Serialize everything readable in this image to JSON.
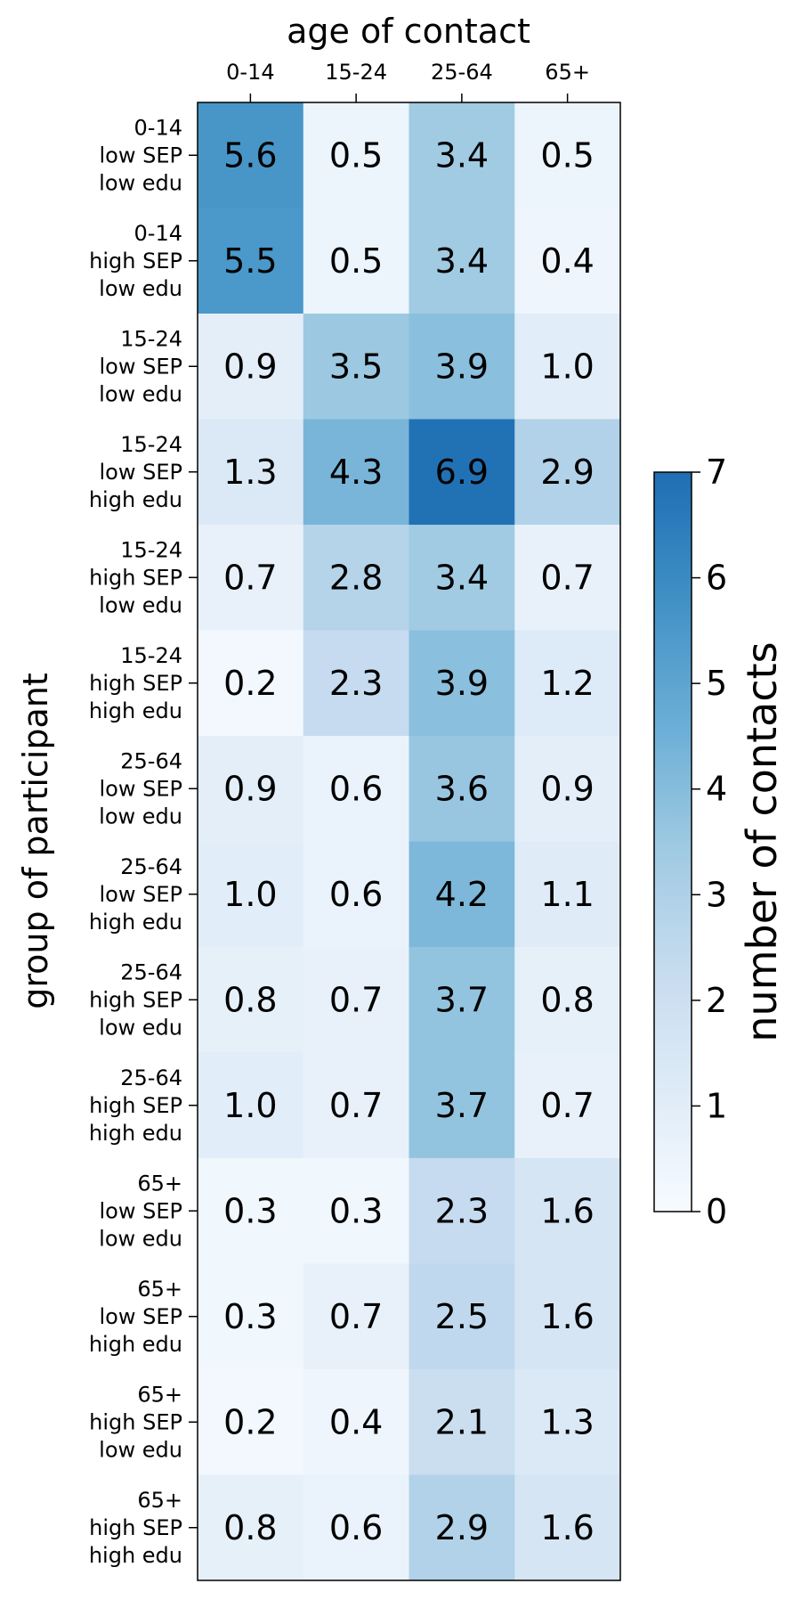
{
  "chart_data": {
    "type": "heatmap",
    "title": "",
    "xlabel": "age of contact",
    "ylabel": "group of participant",
    "x_tick_position": "top",
    "columns": [
      "0-14",
      "15-24",
      "25-64",
      "65+"
    ],
    "rows": [
      [
        "0-14",
        "low SEP",
        "low edu"
      ],
      [
        "0-14",
        "high SEP",
        "low edu"
      ],
      [
        "15-24",
        "low SEP",
        "low edu"
      ],
      [
        "15-24",
        "low SEP",
        "high edu"
      ],
      [
        "15-24",
        "high SEP",
        "low edu"
      ],
      [
        "15-24",
        "high SEP",
        "high edu"
      ],
      [
        "25-64",
        "low SEP",
        "low edu"
      ],
      [
        "25-64",
        "low SEP",
        "high edu"
      ],
      [
        "25-64",
        "high SEP",
        "low edu"
      ],
      [
        "25-64",
        "high SEP",
        "high edu"
      ],
      [
        "65+",
        "low SEP",
        "low edu"
      ],
      [
        "65+",
        "low SEP",
        "high edu"
      ],
      [
        "65+",
        "high SEP",
        "low edu"
      ],
      [
        "65+",
        "high SEP",
        "high edu"
      ]
    ],
    "values": [
      [
        5.6,
        0.5,
        3.4,
        0.5
      ],
      [
        5.5,
        0.5,
        3.4,
        0.4
      ],
      [
        0.9,
        3.5,
        3.9,
        1.0
      ],
      [
        1.3,
        4.3,
        6.9,
        2.9
      ],
      [
        0.7,
        2.8,
        3.4,
        0.7
      ],
      [
        0.2,
        2.3,
        3.9,
        1.2
      ],
      [
        0.9,
        0.6,
        3.6,
        0.9
      ],
      [
        1.0,
        0.6,
        4.2,
        1.1
      ],
      [
        0.8,
        0.7,
        3.7,
        0.8
      ],
      [
        1.0,
        0.7,
        3.7,
        0.7
      ],
      [
        0.3,
        0.3,
        2.3,
        1.6
      ],
      [
        0.3,
        0.7,
        2.5,
        1.6
      ],
      [
        0.2,
        0.4,
        2.1,
        1.3
      ],
      [
        0.8,
        0.6,
        2.9,
        1.6
      ]
    ],
    "colorbar": {
      "label": "number of contacts",
      "range": [
        0,
        7
      ],
      "ticks": [
        "0",
        "1",
        "2",
        "3",
        "4",
        "5",
        "6",
        "7"
      ],
      "colormap": "Blues"
    }
  }
}
